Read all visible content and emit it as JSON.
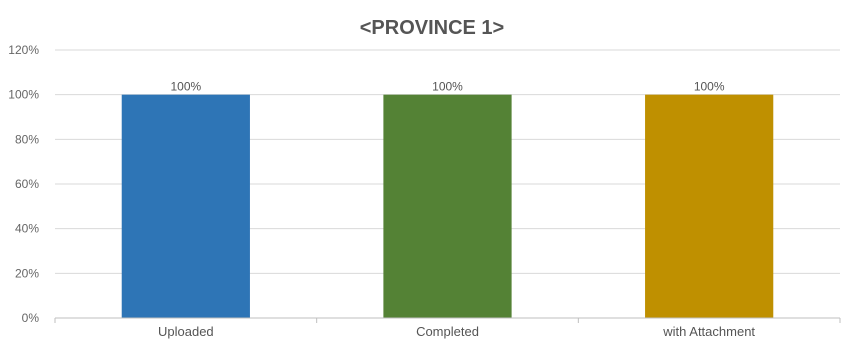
{
  "chart_data": {
    "type": "bar",
    "title": "<PROVINCE 1>",
    "categories": [
      "Uploaded",
      "Completed",
      "with Attachment"
    ],
    "values": [
      100,
      100,
      100
    ],
    "data_labels": [
      "100%",
      "100%",
      "100%"
    ],
    "colors": [
      "#2e75b6",
      "#548235",
      "#bf9000"
    ],
    "ylim": [
      0,
      120
    ],
    "yticks": [
      0,
      20,
      40,
      60,
      80,
      100,
      120
    ],
    "ytick_labels": [
      "0%",
      "20%",
      "40%",
      "60%",
      "80%",
      "100%",
      "120%"
    ],
    "xlabel": "",
    "ylabel": "",
    "grid": true,
    "legend": "none"
  }
}
